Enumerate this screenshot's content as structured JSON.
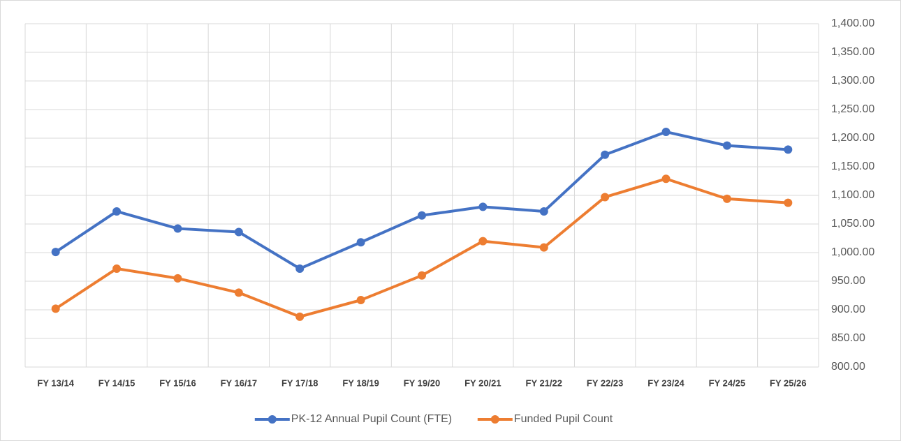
{
  "chart_data": {
    "type": "line",
    "categories": [
      "FY 13/14",
      "FY 14/15",
      "FY 15/16",
      "FY 16/17",
      "FY 17/18",
      "FY 18/19",
      "FY 19/20",
      "FY 20/21",
      "FY 21/22",
      "FY 22/23",
      "FY 23/24",
      "FY 24/25",
      "FY 25/26"
    ],
    "series": [
      {
        "name": "PK-12 Annual Pupil Count (FTE)",
        "color": "#4472c4",
        "values": [
          1001,
          1072,
          1042,
          1036,
          972,
          1018,
          1065,
          1080,
          1072,
          1171,
          1211,
          1187,
          1180
        ]
      },
      {
        "name": "Funded Pupil Count",
        "color": "#ed7d31",
        "values": [
          902,
          972,
          955,
          930,
          888,
          917,
          960,
          1020,
          1009,
          1097,
          1129,
          1094,
          1087
        ]
      }
    ],
    "ylim": [
      800,
      1400
    ],
    "yticks": [
      {
        "value": 800,
        "label": "800.00"
      },
      {
        "value": 850,
        "label": "850.00"
      },
      {
        "value": 900,
        "label": "900.00"
      },
      {
        "value": 950,
        "label": "950.00"
      },
      {
        "value": 1000,
        "label": "1,000.00"
      },
      {
        "value": 1050,
        "label": "1,050.00"
      },
      {
        "value": 1100,
        "label": "1,100.00"
      },
      {
        "value": 1150,
        "label": "1,150.00"
      },
      {
        "value": 1200,
        "label": "1,200.00"
      },
      {
        "value": 1250,
        "label": "1,250.00"
      },
      {
        "value": 1300,
        "label": "1,300.00"
      },
      {
        "value": 1350,
        "label": "1,350.00"
      },
      {
        "value": 1400,
        "label": "1,400.00"
      }
    ],
    "y_axis_side": "right",
    "grid": true,
    "legend": "bottom"
  }
}
